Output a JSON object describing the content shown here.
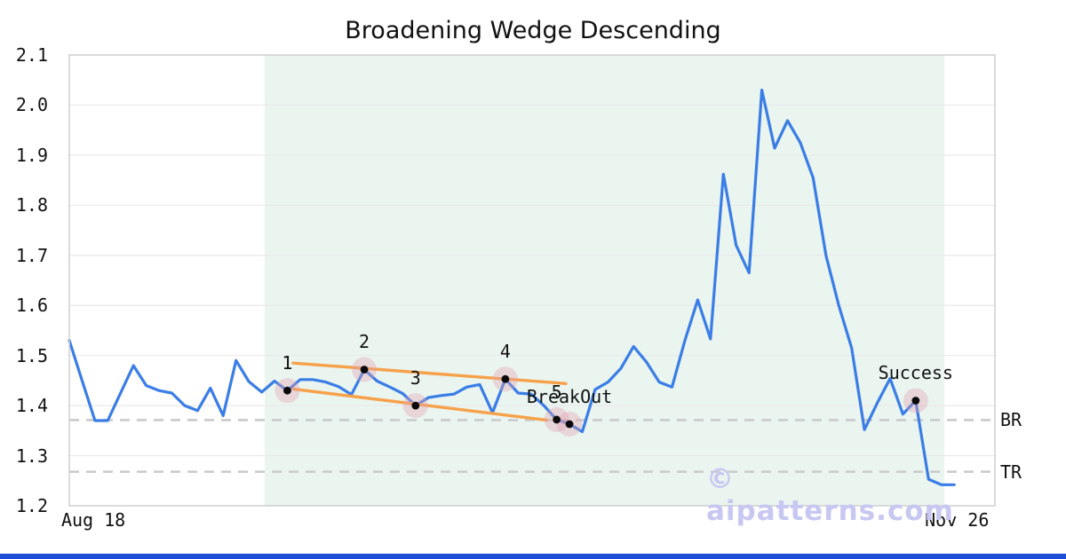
{
  "page": {
    "background": "#ffffff",
    "accent_bar_color": "#1d4ed8"
  },
  "watermark": {
    "text": "© aipatterns.com",
    "color": "#c8c7f2"
  },
  "chart_data": {
    "type": "line",
    "title": "Broadening Wedge Descending",
    "xlabel": "",
    "ylabel": "",
    "ylim": [
      1.2,
      2.1
    ],
    "grid": true,
    "x_ticks": [
      {
        "label": "Aug 18",
        "frac": 0.026
      },
      {
        "label": "Nov 26",
        "frac": 0.959
      }
    ],
    "y_ticks": [
      {
        "label": "2.1",
        "value": 2.1
      },
      {
        "label": "2.0",
        "value": 2.0
      },
      {
        "label": "1.9",
        "value": 1.9
      },
      {
        "label": "1.8",
        "value": 1.8
      },
      {
        "label": "1.7",
        "value": 1.7
      },
      {
        "label": "1.6",
        "value": 1.6
      },
      {
        "label": "1.5",
        "value": 1.5
      },
      {
        "label": "1.4",
        "value": 1.4
      },
      {
        "label": "1.3",
        "value": 1.3
      },
      {
        "label": "1.2",
        "value": 1.2
      }
    ],
    "series": [
      {
        "name": "price",
        "color": "#3a7de6",
        "values": [
          1.53,
          1.45,
          1.37,
          1.37,
          1.425,
          1.48,
          1.44,
          1.43,
          1.425,
          1.4,
          1.39,
          1.435,
          1.38,
          1.49,
          1.448,
          1.427,
          1.449,
          1.43,
          1.452,
          1.452,
          1.447,
          1.438,
          1.422,
          1.472,
          1.449,
          1.437,
          1.424,
          1.4,
          1.416,
          1.42,
          1.423,
          1.437,
          1.442,
          1.386,
          1.453,
          1.425,
          1.423,
          1.4,
          1.372,
          1.363,
          1.348,
          1.432,
          1.447,
          1.474,
          1.518,
          1.487,
          1.447,
          1.437,
          1.53,
          1.611,
          1.533,
          1.862,
          1.72,
          1.665,
          2.03,
          1.914,
          1.969,
          1.925,
          1.855,
          1.7,
          1.6,
          1.515,
          1.352,
          1.405,
          1.454,
          1.383,
          1.41,
          1.253,
          1.242,
          1.242
        ]
      }
    ],
    "pattern_region": {
      "start_index": 15.24,
      "end_index": 68.24,
      "color": "#eaf5f0"
    },
    "pattern_points": [
      {
        "index": 17,
        "label": "1"
      },
      {
        "index": 23,
        "label": "2"
      },
      {
        "index": 27,
        "label": "3"
      },
      {
        "index": 34,
        "label": "4"
      },
      {
        "index": 38,
        "label": "5"
      },
      {
        "index": 39,
        "label": "BreakOut"
      },
      {
        "index": 66,
        "label": "Success"
      }
    ],
    "trendlines": [
      {
        "name": "upper",
        "x1_index": 17.46,
        "v1": 1.485,
        "x2_index": 38.72,
        "v2": 1.444,
        "color": "#f7a14a"
      },
      {
        "name": "lower",
        "x1_index": 17.46,
        "v1": 1.433,
        "x2_index": 37.2,
        "v2": 1.371,
        "color": "#f7a14a"
      }
    ],
    "levels": [
      {
        "label": "BR",
        "value": 1.371
      },
      {
        "label": "TR",
        "value": 1.268
      }
    ],
    "marker": {
      "dot_color": "#0a0a0a",
      "halo_color": "rgba(225,160,175,0.38)"
    },
    "grid_color": "#e9e9e9",
    "frame_color": "#cfcfcf",
    "dashed_level_color": "#cacaca"
  }
}
